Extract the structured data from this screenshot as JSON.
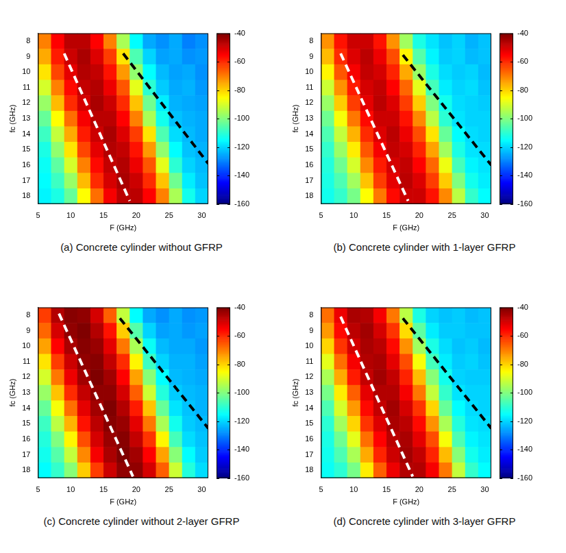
{
  "chart_data": [
    {
      "type": "heatmap",
      "title": "(a) Concrete cylinder without GFRP",
      "x_label": "F (GHz)",
      "y_label": "fc (GHz)",
      "x": [
        6,
        8,
        10,
        12,
        14,
        16,
        18,
        20,
        22,
        24,
        26,
        28,
        30
      ],
      "y": [
        8,
        9,
        10,
        11,
        12,
        13,
        14,
        15,
        16,
        17,
        18
      ],
      "values": [
        [
          -70,
          -55,
          -47,
          -47,
          -55,
          -70,
          -95,
          -115,
          -125,
          -128,
          -125,
          -130,
          -128
        ],
        [
          -75,
          -58,
          -49,
          -45,
          -51,
          -62,
          -82,
          -106,
          -120,
          -126,
          -125,
          -128,
          -127
        ],
        [
          -82,
          -63,
          -52,
          -46,
          -48,
          -57,
          -73,
          -98,
          -115,
          -123,
          -126,
          -125,
          -128
        ],
        [
          -90,
          -70,
          -56,
          -48,
          -46,
          -53,
          -65,
          -88,
          -110,
          -121,
          -125,
          -124,
          -127
        ],
        [
          -97,
          -77,
          -60,
          -50,
          -45,
          -49,
          -60,
          -78,
          -102,
          -117,
          -124,
          -125,
          -126
        ],
        [
          -103,
          -85,
          -68,
          -54,
          -47,
          -47,
          -55,
          -70,
          -95,
          -113,
          -122,
          -124,
          -125
        ],
        [
          -108,
          -92,
          -75,
          -58,
          -49,
          -45,
          -51,
          -62,
          -82,
          -106,
          -119,
          -123,
          -125
        ],
        [
          -112,
          -98,
          -82,
          -63,
          -52,
          -46,
          -48,
          -57,
          -73,
          -98,
          -115,
          -122,
          -124
        ],
        [
          -114,
          -104,
          -90,
          -70,
          -56,
          -48,
          -46,
          -53,
          -65,
          -88,
          -110,
          -120,
          -123
        ],
        [
          -115,
          -108,
          -97,
          -77,
          -60,
          -50,
          -45,
          -49,
          -60,
          -78,
          -102,
          -117,
          -122
        ],
        [
          -116,
          -112,
          -103,
          -85,
          -68,
          -54,
          -47,
          -47,
          -55,
          -70,
          -95,
          -113,
          -120
        ]
      ],
      "xlim": [
        5,
        31
      ],
      "xticks": [
        5,
        10,
        15,
        20,
        25,
        30
      ],
      "ylim": [
        18.5,
        7.5
      ],
      "yticks": [
        8,
        9,
        10,
        11,
        12,
        13,
        14,
        15,
        16,
        17,
        18
      ],
      "colorbar": {
        "lim": [
          -160,
          -40
        ],
        "ticks": [
          -160,
          -140,
          -120,
          -100,
          -80,
          -60,
          -40
        ]
      },
      "guides": [
        {
          "x": [
            9,
            19
          ],
          "y": [
            8.8,
            18.3
          ],
          "color": "#ffffff",
          "line_style": "dashed"
        },
        {
          "x": [
            18,
            31
          ],
          "y": [
            8.8,
            15.9
          ],
          "color": "#000000",
          "line_style": "dashed"
        }
      ]
    },
    {
      "type": "heatmap",
      "title": "(b) Concrete cylinder with 1-layer GFRP",
      "x_label": "F (GHz)",
      "y_label": "fc (GHz)",
      "x": [
        6,
        8,
        10,
        12,
        14,
        16,
        18,
        20,
        22,
        24,
        26,
        28,
        30
      ],
      "y": [
        8,
        9,
        10,
        11,
        12,
        13,
        14,
        15,
        16,
        17,
        18
      ],
      "values": [
        [
          -72,
          -57,
          -49,
          -49,
          -57,
          -72,
          -96,
          -112,
          -118,
          -122,
          -120,
          -124,
          -122
        ],
        [
          -77,
          -60,
          -51,
          -47,
          -53,
          -64,
          -84,
          -105,
          -116,
          -121,
          -120,
          -123,
          -122
        ],
        [
          -84,
          -65,
          -54,
          -48,
          -50,
          -59,
          -75,
          -97,
          -112,
          -119,
          -121,
          -120,
          -123
        ],
        [
          -91,
          -72,
          -58,
          -50,
          -48,
          -55,
          -67,
          -88,
          -107,
          -117,
          -120,
          -119,
          -122
        ],
        [
          -97,
          -79,
          -62,
          -52,
          -47,
          -51,
          -62,
          -79,
          -100,
          -113,
          -119,
          -120,
          -121
        ],
        [
          -102,
          -86,
          -69,
          -56,
          -49,
          -49,
          -57,
          -71,
          -93,
          -110,
          -118,
          -120,
          -120
        ],
        [
          -106,
          -92,
          -76,
          -60,
          -51,
          -47,
          -53,
          -64,
          -82,
          -103,
          -115,
          -119,
          -120
        ],
        [
          -109,
          -97,
          -83,
          -65,
          -54,
          -48,
          -50,
          -59,
          -74,
          -96,
          -112,
          -118,
          -119
        ],
        [
          -111,
          -102,
          -90,
          -71,
          -58,
          -50,
          -48,
          -55,
          -67,
          -87,
          -107,
          -116,
          -118
        ],
        [
          -112,
          -106,
          -96,
          -78,
          -62,
          -52,
          -47,
          -51,
          -62,
          -79,
          -100,
          -113,
          -117
        ],
        [
          -113,
          -109,
          -101,
          -85,
          -69,
          -56,
          -49,
          -49,
          -57,
          -71,
          -93,
          -109,
          -115
        ]
      ],
      "xlim": [
        5,
        31
      ],
      "xticks": [
        5,
        10,
        15,
        20,
        25,
        30
      ],
      "ylim": [
        18.5,
        7.5
      ],
      "yticks": [
        8,
        9,
        10,
        11,
        12,
        13,
        14,
        15,
        16,
        17,
        18
      ],
      "colorbar": {
        "lim": [
          -160,
          -40
        ],
        "ticks": [
          -160,
          -140,
          -120,
          -100,
          -80,
          -60,
          -40
        ]
      },
      "guides": [
        {
          "x": [
            8,
            18.3
          ],
          "y": [
            8.8,
            18.3
          ],
          "color": "#ffffff",
          "line_style": "dashed"
        },
        {
          "x": [
            17.5,
            31
          ],
          "y": [
            8.9,
            16
          ],
          "color": "#000000",
          "line_style": "dashed"
        }
      ]
    },
    {
      "type": "heatmap",
      "title": "(c) Concrete cylinder without 2-layer GFRP",
      "x_label": "F (GHz)",
      "y_label": "fc (GHz)",
      "x": [
        6,
        8,
        10,
        12,
        14,
        16,
        18,
        20,
        22,
        24,
        26,
        28,
        30
      ],
      "y": [
        8,
        9,
        10,
        11,
        12,
        13,
        14,
        15,
        16,
        17,
        18
      ],
      "values": [
        [
          -62,
          -46,
          -41,
          -42,
          -50,
          -66,
          -92,
          -115,
          -125,
          -128,
          -125,
          -128,
          -127
        ],
        [
          -67,
          -50,
          -42,
          -40,
          -46,
          -57,
          -79,
          -105,
          -120,
          -126,
          -125,
          -127,
          -126
        ],
        [
          -74,
          -55,
          -45,
          -41,
          -43,
          -52,
          -69,
          -95,
          -114,
          -123,
          -125,
          -125,
          -127
        ],
        [
          -82,
          -62,
          -49,
          -42,
          -41,
          -48,
          -60,
          -84,
          -108,
          -120,
          -124,
          -124,
          -126
        ],
        [
          -90,
          -69,
          -53,
          -44,
          -40,
          -44,
          -55,
          -74,
          -99,
          -115,
          -123,
          -124,
          -125
        ],
        [
          -97,
          -78,
          -60,
          -48,
          -42,
          -42,
          -50,
          -66,
          -91,
          -111,
          -121,
          -123,
          -124
        ],
        [
          -103,
          -86,
          -68,
          -52,
          -44,
          -40,
          -46,
          -58,
          -78,
          -103,
          -118,
          -122,
          -124
        ],
        [
          -108,
          -93,
          -76,
          -57,
          -47,
          -41,
          -43,
          -52,
          -69,
          -95,
          -113,
          -121,
          -123
        ],
        [
          -111,
          -100,
          -84,
          -64,
          -50,
          -43,
          -41,
          -48,
          -61,
          -84,
          -107,
          -119,
          -122
        ],
        [
          -113,
          -105,
          -92,
          -71,
          -54,
          -45,
          -40,
          -44,
          -55,
          -74,
          -99,
          -115,
          -121
        ],
        [
          -115,
          -109,
          -99,
          -79,
          -62,
          -49,
          -42,
          -42,
          -50,
          -66,
          -91,
          -111,
          -119
        ]
      ],
      "xlim": [
        5,
        31
      ],
      "xticks": [
        5,
        10,
        15,
        20,
        25,
        30
      ],
      "ylim": [
        18.5,
        7.5
      ],
      "yticks": [
        8,
        9,
        10,
        11,
        12,
        13,
        14,
        15,
        16,
        17,
        18
      ],
      "colorbar": {
        "lim": [
          -160,
          -40
        ],
        "ticks": [
          -160,
          -140,
          -120,
          -100,
          -80,
          -60,
          -40
        ]
      },
      "guides": [
        {
          "x": [
            8.2,
            19.5
          ],
          "y": [
            7.9,
            18.4
          ],
          "color": "#ffffff",
          "line_style": "dashed"
        },
        {
          "x": [
            17.5,
            31
          ],
          "y": [
            8.2,
            15.3
          ],
          "color": "#000000",
          "line_style": "dashed"
        }
      ]
    },
    {
      "type": "heatmap",
      "title": "(d) Concrete cylinder with 3-layer GFRP",
      "x_label": "F (GHz)",
      "y_label": "fc (GHz)",
      "x": [
        6,
        8,
        10,
        12,
        14,
        16,
        18,
        20,
        22,
        24,
        26,
        28,
        30
      ],
      "y": [
        8,
        9,
        10,
        11,
        12,
        13,
        14,
        15,
        16,
        17,
        18
      ],
      "values": [
        [
          -68,
          -53,
          -45,
          -46,
          -54,
          -69,
          -93,
          -112,
          -120,
          -122,
          -121,
          -123,
          -122
        ],
        [
          -73,
          -56,
          -47,
          -44,
          -50,
          -61,
          -81,
          -104,
          -117,
          -121,
          -121,
          -122,
          -122
        ],
        [
          -80,
          -61,
          -50,
          -45,
          -47,
          -56,
          -72,
          -96,
          -112,
          -119,
          -122,
          -121,
          -123
        ],
        [
          -88,
          -68,
          -54,
          -46,
          -45,
          -52,
          -64,
          -86,
          -107,
          -117,
          -121,
          -120,
          -122
        ],
        [
          -95,
          -75,
          -58,
          -48,
          -44,
          -48,
          -59,
          -77,
          -99,
          -113,
          -120,
          -121,
          -121
        ],
        [
          -101,
          -83,
          -66,
          -52,
          -46,
          -46,
          -54,
          -69,
          -92,
          -109,
          -118,
          -120,
          -120
        ],
        [
          -106,
          -90,
          -73,
          -56,
          -48,
          -44,
          -50,
          -61,
          -80,
          -103,
          -115,
          -119,
          -120
        ],
        [
          -110,
          -96,
          -80,
          -61,
          -51,
          -45,
          -47,
          -56,
          -72,
          -95,
          -111,
          -118,
          -119
        ],
        [
          -112,
          -102,
          -88,
          -68,
          -55,
          -47,
          -45,
          -52,
          -64,
          -86,
          -106,
          -116,
          -118
        ],
        [
          -113,
          -106,
          -95,
          -75,
          -59,
          -49,
          -44,
          -48,
          -59,
          -77,
          -99,
          -113,
          -117
        ],
        [
          -114,
          -110,
          -101,
          -83,
          -66,
          -53,
          -46,
          -46,
          -54,
          -69,
          -92,
          -109,
          -115
        ]
      ],
      "xlim": [
        5,
        31
      ],
      "xticks": [
        5,
        10,
        15,
        20,
        25,
        30
      ],
      "ylim": [
        18.5,
        7.5
      ],
      "yticks": [
        8,
        9,
        10,
        11,
        12,
        13,
        14,
        15,
        16,
        17,
        18
      ],
      "colorbar": {
        "lim": [
          -160,
          -40
        ],
        "ticks": [
          -160,
          -140,
          -120,
          -100,
          -80,
          -60,
          -40
        ]
      },
      "guides": [
        {
          "x": [
            8,
            19
          ],
          "y": [
            8.1,
            18.4
          ],
          "color": "#ffffff",
          "line_style": "dashed"
        },
        {
          "x": [
            17.5,
            31
          ],
          "y": [
            8.2,
            15.3
          ],
          "color": "#000000",
          "line_style": "dashed"
        }
      ]
    }
  ]
}
